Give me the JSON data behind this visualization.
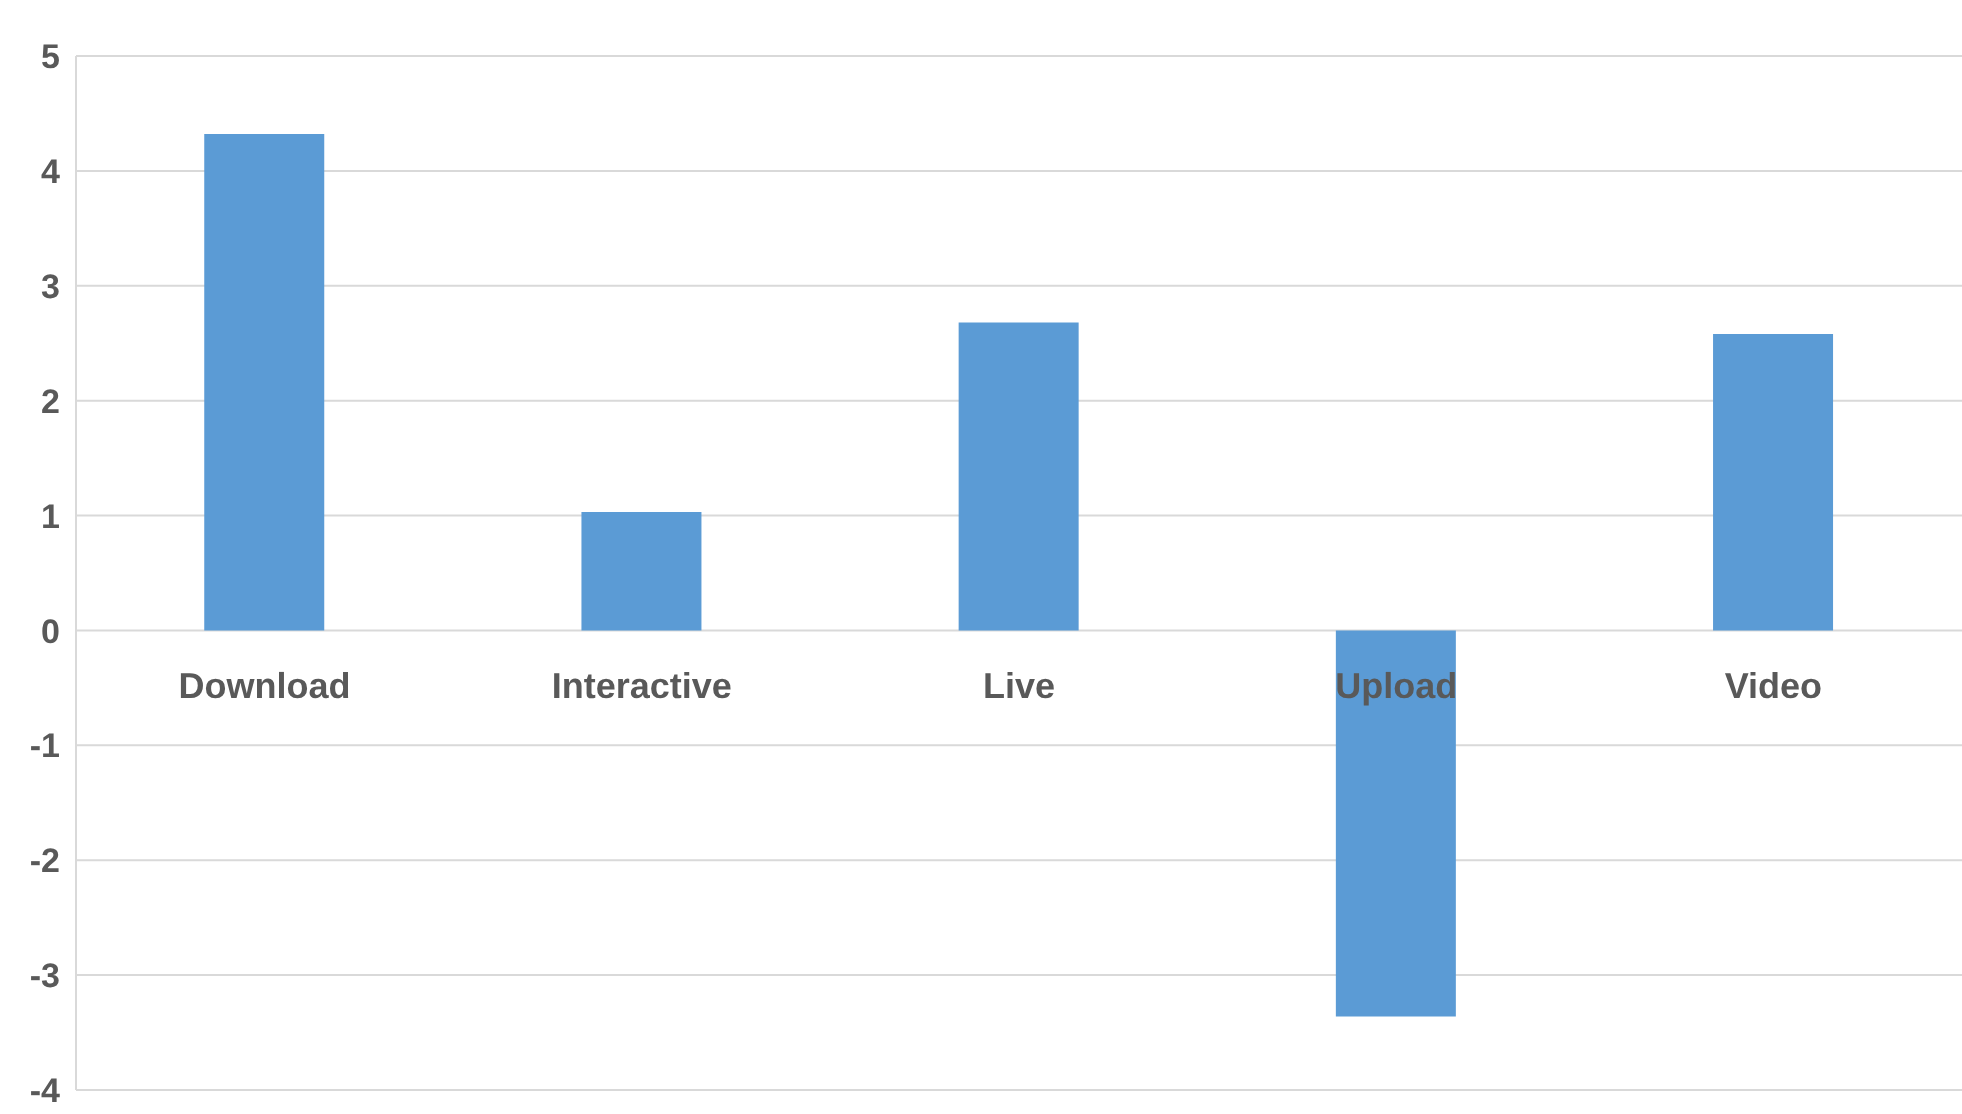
{
  "chart_data": {
    "type": "bar",
    "categories": [
      "Download",
      "Interactive",
      "Live",
      "Upload",
      "Video"
    ],
    "values": [
      4.32,
      1.03,
      2.68,
      -3.36,
      2.58
    ],
    "color": "#5b9bd5",
    "ylim": [
      -4,
      5
    ],
    "yticks": [
      -4,
      -3,
      -2,
      -1,
      0,
      1,
      2,
      3,
      4,
      5
    ],
    "grid": "y",
    "legend": false
  }
}
